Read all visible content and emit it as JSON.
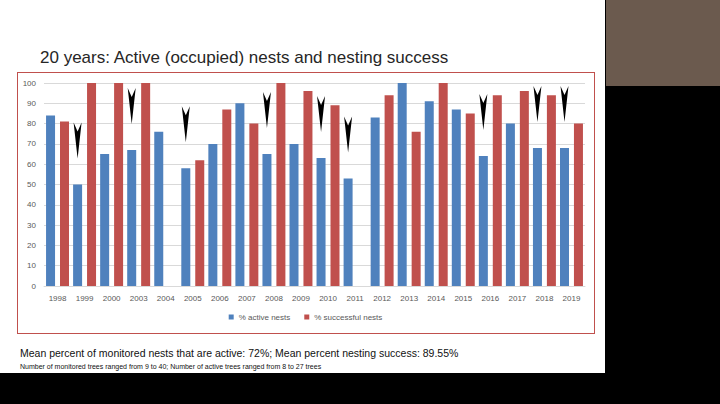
{
  "chart_data": {
    "type": "bar",
    "title": "20 years: Active (occupied) nests and nesting success",
    "categories": [
      "1998",
      "1999",
      "2000",
      "2003",
      "2004",
      "2005",
      "2006",
      "2007",
      "2008",
      "2009",
      "2010",
      "2011",
      "2012",
      "2013",
      "2014",
      "2015",
      "2016",
      "2017",
      "2018",
      "2019"
    ],
    "series": [
      {
        "name": "% active nests",
        "color": "#4f81bd",
        "values": [
          84,
          50,
          65,
          67,
          76,
          58,
          70,
          90,
          65,
          70,
          63,
          53,
          83,
          100,
          91,
          87,
          64,
          80,
          68,
          68
        ]
      },
      {
        "name": "% successful nests",
        "color": "#c0504d",
        "values": [
          81,
          100,
          100,
          100,
          null,
          62,
          87,
          80,
          100,
          96,
          89,
          null,
          94,
          76,
          100,
          85,
          94,
          96,
          94,
          80
        ]
      }
    ],
    "arrows": [
      "1999",
      "2003",
      "2005",
      "2008",
      "2010",
      "2011",
      "2016",
      "2018",
      "2019"
    ],
    "ylim": [
      0,
      100
    ],
    "yticks": [
      0,
      10,
      20,
      30,
      40,
      50,
      60,
      70,
      80,
      90,
      100
    ],
    "grid": true,
    "legend": "bottom",
    "annotations": [
      "Mean percent of monitored nests that are active: 72%; Mean percent nesting success: 89.55%",
      "Number of monitored trees ranged from 9 to 40; Number of active trees ranged from 8 to 27 trees"
    ]
  }
}
